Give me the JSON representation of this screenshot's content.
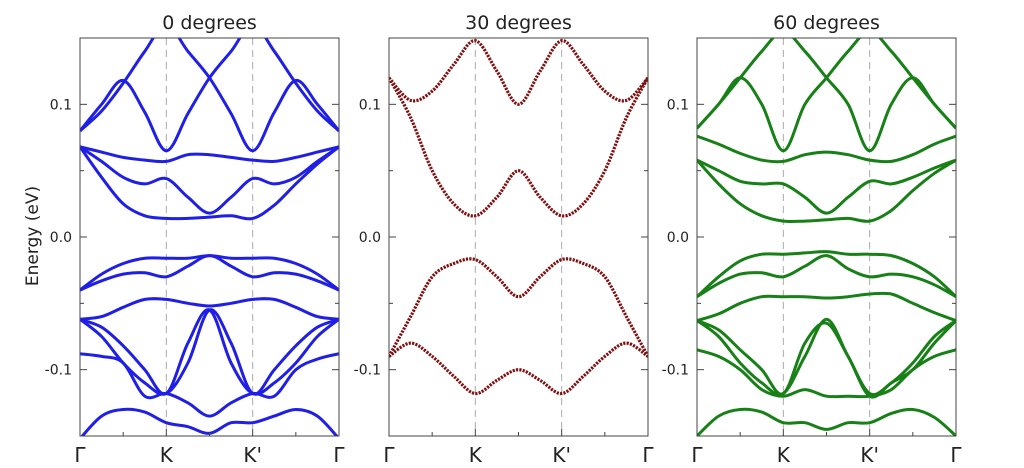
{
  "chart_data": {
    "type": "line",
    "ylabel": "Energy (eV)",
    "ylim": [
      -0.15,
      0.15
    ],
    "yticks": [
      {
        "value": 0.1,
        "label": "0.1"
      },
      {
        "value": 0.0,
        "label": "0.0"
      },
      {
        "value": -0.1,
        "label": "-0.1"
      }
    ],
    "x_ticks": [
      {
        "position": 0.0,
        "label": "Γ"
      },
      {
        "position": 1.0,
        "label": "K"
      },
      {
        "position": 2.0,
        "label": "K'"
      },
      {
        "position": 3.0,
        "label": "Γ"
      }
    ],
    "xlim": [
      0,
      3
    ],
    "grid": false,
    "panels": [
      {
        "title": "0 degrees",
        "color": "#1f1fe6",
        "bands": [
          {
            "name": "",
            "x": [
              0,
              0.25,
              0.5,
              0.75,
              1,
              1.25,
              1.5,
              1.75,
              2,
              2.25,
              2.5,
              2.75,
              3
            ],
            "values": [
              0.08,
              0.095,
              0.116,
              0.14,
              0.16,
              0.14,
              0.12,
              0.093,
              0.065,
              0.094,
              0.118,
              0.1,
              0.08
            ]
          },
          {
            "name": "",
            "x": [
              0,
              0.25,
              0.5,
              0.75,
              1,
              1.25,
              1.5,
              1.75,
              2,
              2.25,
              2.5,
              2.75,
              3
            ],
            "values": [
              0.08,
              0.1,
              0.118,
              0.094,
              0.065,
              0.093,
              0.12,
              0.14,
              0.16,
              0.14,
              0.116,
              0.095,
              0.08
            ]
          },
          {
            "name": "",
            "x": [
              0,
              0.25,
              0.5,
              0.75,
              1,
              1.25,
              1.5,
              1.75,
              2,
              2.25,
              2.5,
              2.75,
              3
            ],
            "values": [
              0.068,
              0.064,
              0.06,
              0.058,
              0.057,
              0.062,
              0.062,
              0.06,
              0.058,
              0.057,
              0.06,
              0.064,
              0.068
            ]
          },
          {
            "name": "",
            "x": [
              0,
              0.25,
              0.5,
              0.75,
              1,
              1.25,
              1.5,
              1.75,
              2,
              2.25,
              2.5,
              2.75,
              3
            ],
            "values": [
              0.068,
              0.057,
              0.045,
              0.04,
              0.044,
              0.03,
              0.018,
              0.03,
              0.044,
              0.04,
              0.045,
              0.057,
              0.068
            ]
          },
          {
            "name": "",
            "x": [
              0,
              0.25,
              0.5,
              0.75,
              1,
              1.25,
              1.5,
              1.75,
              2,
              2.25,
              2.5,
              2.75,
              3
            ],
            "values": [
              0.068,
              0.045,
              0.025,
              0.016,
              0.014,
              0.014,
              0.015,
              0.016,
              0.014,
              0.024,
              0.04,
              0.055,
              0.068
            ]
          },
          {
            "name": "",
            "x": [
              0,
              0.25,
              0.5,
              0.75,
              1,
              1.25,
              1.5,
              1.75,
              2,
              2.25,
              2.5,
              2.75,
              3
            ],
            "values": [
              -0.04,
              -0.028,
              -0.02,
              -0.016,
              -0.016,
              -0.016,
              -0.014,
              -0.016,
              -0.016,
              -0.016,
              -0.02,
              -0.028,
              -0.04
            ]
          },
          {
            "name": "",
            "x": [
              0,
              0.25,
              0.5,
              0.75,
              1,
              1.25,
              1.5,
              1.75,
              2,
              2.25,
              2.5,
              2.75,
              3
            ],
            "values": [
              -0.04,
              -0.033,
              -0.028,
              -0.027,
              -0.03,
              -0.022,
              -0.014,
              -0.022,
              -0.03,
              -0.027,
              -0.028,
              -0.033,
              -0.04
            ]
          },
          {
            "name": "",
            "x": [
              0,
              0.25,
              0.5,
              0.75,
              1,
              1.25,
              1.5,
              1.75,
              2,
              2.25,
              2.5,
              2.75,
              3
            ],
            "values": [
              -0.062,
              -0.06,
              -0.053,
              -0.047,
              -0.047,
              -0.05,
              -0.052,
              -0.05,
              -0.047,
              -0.047,
              -0.053,
              -0.06,
              -0.062
            ]
          },
          {
            "name": "",
            "x": [
              0,
              0.25,
              0.5,
              0.75,
              1,
              1.25,
              1.5,
              1.75,
              2,
              2.25,
              2.5,
              2.75,
              3
            ],
            "values": [
              -0.062,
              -0.075,
              -0.095,
              -0.11,
              -0.118,
              -0.095,
              -0.055,
              -0.08,
              -0.118,
              -0.1,
              -0.082,
              -0.068,
              -0.062
            ]
          },
          {
            "name": "",
            "x": [
              0,
              0.25,
              0.5,
              0.75,
              1,
              1.25,
              1.5,
              1.75,
              2,
              2.25,
              2.5,
              2.75,
              3
            ],
            "values": [
              -0.062,
              -0.068,
              -0.082,
              -0.1,
              -0.118,
              -0.08,
              -0.055,
              -0.095,
              -0.118,
              -0.11,
              -0.095,
              -0.075,
              -0.062
            ]
          },
          {
            "name": "",
            "x": [
              0,
              0.25,
              0.5,
              0.75,
              1,
              1.25,
              1.5,
              1.75,
              2,
              2.25,
              2.5,
              2.75,
              3
            ],
            "values": [
              -0.088,
              -0.09,
              -0.095,
              -0.12,
              -0.118,
              -0.125,
              -0.135,
              -0.125,
              -0.118,
              -0.12,
              -0.1,
              -0.092,
              -0.088
            ]
          },
          {
            "name": "",
            "x": [
              0,
              0.25,
              0.5,
              0.75,
              1,
              1.25,
              1.5,
              1.75,
              2,
              2.25,
              2.5,
              2.75,
              3
            ],
            "values": [
              -0.152,
              -0.135,
              -0.13,
              -0.132,
              -0.14,
              -0.143,
              -0.148,
              -0.14,
              -0.14,
              -0.135,
              -0.13,
              -0.135,
              -0.152
            ]
          }
        ]
      },
      {
        "title": "30 degrees",
        "color": "#7f1010",
        "bands": [
          {
            "name": "",
            "x": [
              0,
              0.25,
              0.5,
              0.75,
              1,
              1.25,
              1.5,
              1.75,
              2,
              2.25,
              2.5,
              2.75,
              3
            ],
            "values": [
              0.12,
              0.103,
              0.11,
              0.13,
              0.148,
              0.125,
              0.1,
              0.125,
              0.148,
              0.13,
              0.11,
              0.103,
              0.12
            ]
          },
          {
            "name": "",
            "x": [
              0,
              0.25,
              0.5,
              0.75,
              1,
              1.25,
              1.5,
              1.75,
              2,
              2.25,
              2.5,
              2.75,
              3
            ],
            "values": [
              0.12,
              0.09,
              0.05,
              0.025,
              0.016,
              0.03,
              0.05,
              0.03,
              0.016,
              0.025,
              0.05,
              0.09,
              0.12
            ]
          },
          {
            "name": "",
            "x": [
              0,
              0.25,
              0.5,
              0.75,
              1,
              1.25,
              1.5,
              1.75,
              2,
              2.25,
              2.5,
              2.75,
              3
            ],
            "values": [
              -0.09,
              -0.06,
              -0.03,
              -0.02,
              -0.017,
              -0.03,
              -0.045,
              -0.03,
              -0.017,
              -0.02,
              -0.03,
              -0.06,
              -0.09
            ]
          },
          {
            "name": "",
            "x": [
              0,
              0.25,
              0.5,
              0.75,
              1,
              1.25,
              1.5,
              1.75,
              2,
              2.25,
              2.5,
              2.75,
              3
            ],
            "values": [
              -0.09,
              -0.08,
              -0.09,
              -0.105,
              -0.118,
              -0.108,
              -0.1,
              -0.108,
              -0.118,
              -0.105,
              -0.09,
              -0.08,
              -0.09
            ]
          }
        ]
      },
      {
        "title": "60 degrees",
        "color": "#178017",
        "bands": [
          {
            "name": "",
            "x": [
              0,
              0.25,
              0.5,
              0.75,
              1,
              1.25,
              1.5,
              1.75,
              2,
              2.25,
              2.5,
              2.75,
              3
            ],
            "values": [
              0.082,
              0.1,
              0.12,
              0.14,
              0.155,
              0.14,
              0.12,
              0.1,
              0.065,
              0.1,
              0.12,
              0.1,
              0.082
            ]
          },
          {
            "name": "",
            "x": [
              0,
              0.25,
              0.5,
              0.75,
              1,
              1.25,
              1.5,
              1.75,
              2,
              2.25,
              2.5,
              2.75,
              3
            ],
            "values": [
              0.082,
              0.1,
              0.12,
              0.1,
              0.065,
              0.1,
              0.12,
              0.14,
              0.155,
              0.14,
              0.12,
              0.1,
              0.082
            ]
          },
          {
            "name": "",
            "x": [
              0,
              0.25,
              0.5,
              0.75,
              1,
              1.25,
              1.5,
              1.75,
              2,
              2.25,
              2.5,
              2.75,
              3
            ],
            "values": [
              0.076,
              0.07,
              0.063,
              0.058,
              0.057,
              0.062,
              0.064,
              0.062,
              0.058,
              0.057,
              0.062,
              0.07,
              0.076
            ]
          },
          {
            "name": "",
            "x": [
              0,
              0.25,
              0.5,
              0.75,
              1,
              1.25,
              1.5,
              1.75,
              2,
              2.25,
              2.5,
              2.75,
              3
            ],
            "values": [
              0.058,
              0.05,
              0.042,
              0.04,
              0.04,
              0.03,
              0.018,
              0.03,
              0.042,
              0.04,
              0.045,
              0.052,
              0.058
            ]
          },
          {
            "name": "",
            "x": [
              0,
              0.25,
              0.5,
              0.75,
              1,
              1.25,
              1.5,
              1.75,
              2,
              2.25,
              2.5,
              2.75,
              3
            ],
            "values": [
              0.058,
              0.04,
              0.025,
              0.016,
              0.012,
              0.012,
              0.013,
              0.014,
              0.012,
              0.02,
              0.035,
              0.048,
              0.058
            ]
          },
          {
            "name": "",
            "x": [
              0,
              0.25,
              0.5,
              0.75,
              1,
              1.25,
              1.5,
              1.75,
              2,
              2.25,
              2.5,
              2.75,
              3
            ],
            "values": [
              -0.045,
              -0.03,
              -0.018,
              -0.013,
              -0.013,
              -0.012,
              -0.011,
              -0.013,
              -0.013,
              -0.014,
              -0.02,
              -0.03,
              -0.045
            ]
          },
          {
            "name": "",
            "x": [
              0,
              0.25,
              0.5,
              0.75,
              1,
              1.25,
              1.5,
              1.75,
              2,
              2.25,
              2.5,
              2.75,
              3
            ],
            "values": [
              -0.045,
              -0.035,
              -0.028,
              -0.027,
              -0.03,
              -0.022,
              -0.014,
              -0.024,
              -0.03,
              -0.028,
              -0.03,
              -0.036,
              -0.045
            ]
          },
          {
            "name": "",
            "x": [
              0,
              0.25,
              0.5,
              0.75,
              1,
              1.25,
              1.5,
              1.75,
              2,
              2.25,
              2.5,
              2.75,
              3
            ],
            "values": [
              -0.063,
              -0.058,
              -0.05,
              -0.045,
              -0.045,
              -0.045,
              -0.046,
              -0.045,
              -0.043,
              -0.043,
              -0.05,
              -0.057,
              -0.063
            ]
          },
          {
            "name": "",
            "x": [
              0,
              0.25,
              0.5,
              0.75,
              1,
              1.25,
              1.5,
              1.75,
              2,
              2.25,
              2.5,
              2.75,
              3
            ],
            "values": [
              -0.063,
              -0.075,
              -0.095,
              -0.11,
              -0.118,
              -0.09,
              -0.062,
              -0.09,
              -0.118,
              -0.11,
              -0.095,
              -0.075,
              -0.063
            ]
          },
          {
            "name": "",
            "x": [
              0,
              0.25,
              0.5,
              0.75,
              1,
              1.25,
              1.5,
              1.75,
              2,
              2.25,
              2.5,
              2.75,
              3
            ],
            "values": [
              -0.063,
              -0.07,
              -0.085,
              -0.1,
              -0.118,
              -0.08,
              -0.065,
              -0.09,
              -0.12,
              -0.11,
              -0.1,
              -0.08,
              -0.063
            ]
          },
          {
            "name": "",
            "x": [
              0,
              0.25,
              0.5,
              0.75,
              1,
              1.25,
              1.5,
              1.75,
              2,
              2.25,
              2.5,
              2.75,
              3
            ],
            "values": [
              -0.085,
              -0.09,
              -0.1,
              -0.115,
              -0.12,
              -0.115,
              -0.12,
              -0.12,
              -0.12,
              -0.115,
              -0.1,
              -0.09,
              -0.085
            ]
          },
          {
            "name": "",
            "x": [
              0,
              0.25,
              0.5,
              0.75,
              1,
              1.25,
              1.5,
              1.75,
              2,
              2.25,
              2.5,
              2.75,
              3
            ],
            "values": [
              -0.15,
              -0.135,
              -0.13,
              -0.132,
              -0.14,
              -0.14,
              -0.145,
              -0.14,
              -0.14,
              -0.133,
              -0.13,
              -0.136,
              -0.15
            ]
          }
        ]
      }
    ]
  }
}
